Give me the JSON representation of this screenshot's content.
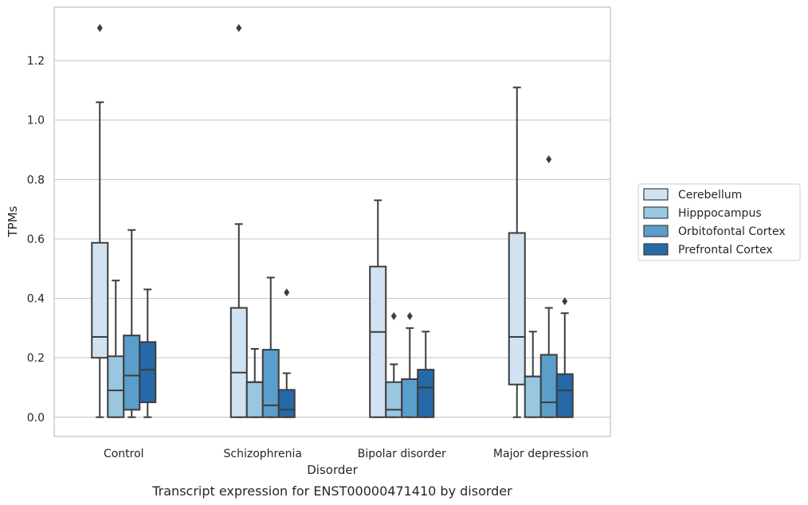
{
  "caption": "Transcript expression for ENST00000471410 by disorder",
  "chart_data": {
    "type": "box",
    "xlabel": "Disorder",
    "ylabel": "TPMs",
    "ylim": [
      -0.065,
      1.38
    ],
    "yticks": [
      0.0,
      0.2,
      0.4,
      0.6,
      0.8,
      1.0,
      1.2
    ],
    "ytick_labels": [
      "0.0",
      "0.2",
      "0.4",
      "0.6",
      "0.8",
      "1.0",
      "1.2"
    ],
    "grid": "horizontal",
    "legend_position": "right",
    "categories": [
      "Control",
      "Schizophrenia",
      "Bipolar disorder",
      "Major depression"
    ],
    "series": [
      {
        "name": "Cerebellum",
        "color": "#d1e2f2",
        "boxes": [
          {
            "whisker_low": 0.0,
            "q1": 0.2,
            "median": 0.27,
            "q3": 0.587,
            "whisker_high": 1.06,
            "outliers": [
              1.31
            ]
          },
          {
            "whisker_low": 0.0,
            "q1": 0.0,
            "median": 0.15,
            "q3": 0.368,
            "whisker_high": 0.65,
            "outliers": [
              1.31
            ]
          },
          {
            "whisker_low": 0.0,
            "q1": 0.0,
            "median": 0.287,
            "q3": 0.507,
            "whisker_high": 0.73,
            "outliers": []
          },
          {
            "whisker_low": 0.0,
            "q1": 0.11,
            "median": 0.27,
            "q3": 0.62,
            "whisker_high": 1.11,
            "outliers": []
          }
        ]
      },
      {
        "name": "Hipppocampus",
        "color": "#9ac7e0",
        "boxes": [
          {
            "whisker_low": 0.0,
            "q1": 0.0,
            "median": 0.09,
            "q3": 0.205,
            "whisker_high": 0.46,
            "outliers": []
          },
          {
            "whisker_low": 0.0,
            "q1": 0.0,
            "median": 0.118,
            "q3": 0.118,
            "whisker_high": 0.23,
            "outliers": []
          },
          {
            "whisker_low": 0.0,
            "q1": 0.0,
            "median": 0.025,
            "q3": 0.118,
            "whisker_high": 0.178,
            "outliers": [
              0.34
            ]
          },
          {
            "whisker_low": 0.0,
            "q1": 0.0,
            "median": 0.137,
            "q3": 0.137,
            "whisker_high": 0.288,
            "outliers": []
          }
        ]
      },
      {
        "name": "Orbitofontal Cortex",
        "color": "#5a9ecc",
        "boxes": [
          {
            "whisker_low": 0.0,
            "q1": 0.025,
            "median": 0.14,
            "q3": 0.275,
            "whisker_high": 0.63,
            "outliers": []
          },
          {
            "whisker_low": 0.0,
            "q1": 0.0,
            "median": 0.04,
            "q3": 0.227,
            "whisker_high": 0.47,
            "outliers": []
          },
          {
            "whisker_low": 0.0,
            "q1": 0.0,
            "median": 0.128,
            "q3": 0.128,
            "whisker_high": 0.3,
            "outliers": [
              0.34
            ]
          },
          {
            "whisker_low": 0.0,
            "q1": 0.0,
            "median": 0.05,
            "q3": 0.21,
            "whisker_high": 0.368,
            "outliers": [
              0.868
            ]
          }
        ]
      },
      {
        "name": "Prefrontal Cortex",
        "color": "#2669a8",
        "boxes": [
          {
            "whisker_low": 0.0,
            "q1": 0.05,
            "median": 0.16,
            "q3": 0.253,
            "whisker_high": 0.43,
            "outliers": []
          },
          {
            "whisker_low": 0.0,
            "q1": 0.0,
            "median": 0.025,
            "q3": 0.092,
            "whisker_high": 0.148,
            "outliers": [
              0.42
            ]
          },
          {
            "whisker_low": 0.0,
            "q1": 0.0,
            "median": 0.1,
            "q3": 0.16,
            "whisker_high": 0.288,
            "outliers": []
          },
          {
            "whisker_low": 0.0,
            "q1": 0.0,
            "median": 0.09,
            "q3": 0.145,
            "whisker_high": 0.35,
            "outliers": [
              0.39
            ]
          }
        ]
      }
    ]
  }
}
